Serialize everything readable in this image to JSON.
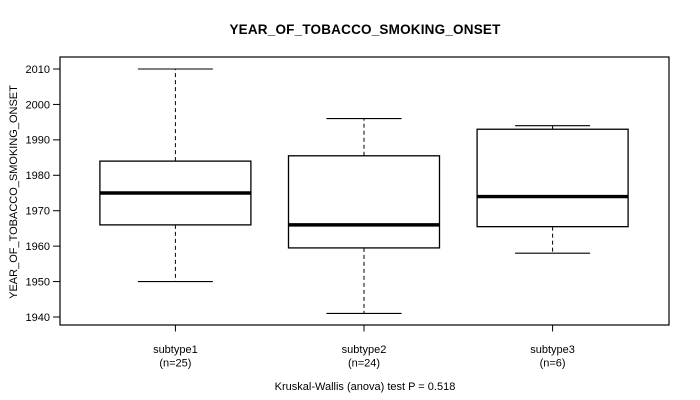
{
  "title": "YEAR_OF_TOBACCO_SMOKING_ONSET",
  "y_axis_label": "YEAR_OF_TOBACCO_SMOKING_ONSET",
  "caption": "Kruskal-Wallis (anova) test P = 0.518",
  "colors": {
    "foreground": "#000000",
    "background": "#ffffff"
  },
  "chart_data": {
    "type": "boxplot",
    "title": "YEAR_OF_TOBACCO_SMOKING_ONSET",
    "ylabel": "YEAR_OF_TOBACCO_SMOKING_ONSET",
    "xlabel": "",
    "ylim": [
      1937.5,
      2013.5
    ],
    "yticks": [
      1940,
      1950,
      1960,
      1970,
      1980,
      1990,
      2000,
      2010
    ],
    "grid": false,
    "categories": [
      "subtype1",
      "subtype2",
      "subtype3"
    ],
    "x_tick_labels_line2": [
      "(n=25)",
      "(n=24)",
      "(n=6)"
    ],
    "sample_sizes": [
      25,
      24,
      6
    ],
    "series": [
      {
        "name": "subtype1",
        "n": 25,
        "whisker_low": 1950,
        "q1": 1966,
        "median": 1975,
        "q3": 1984,
        "whisker_high": 2010
      },
      {
        "name": "subtype2",
        "n": 24,
        "whisker_low": 1941,
        "q1": 1959.5,
        "median": 1966,
        "q3": 1985.5,
        "whisker_high": 1996
      },
      {
        "name": "subtype3",
        "n": 6,
        "whisker_low": 1958,
        "q1": 1965.5,
        "median": 1974,
        "q3": 1993,
        "whisker_high": 1994
      }
    ],
    "annotation": "Kruskal-Wallis (anova) test P = 0.518"
  }
}
